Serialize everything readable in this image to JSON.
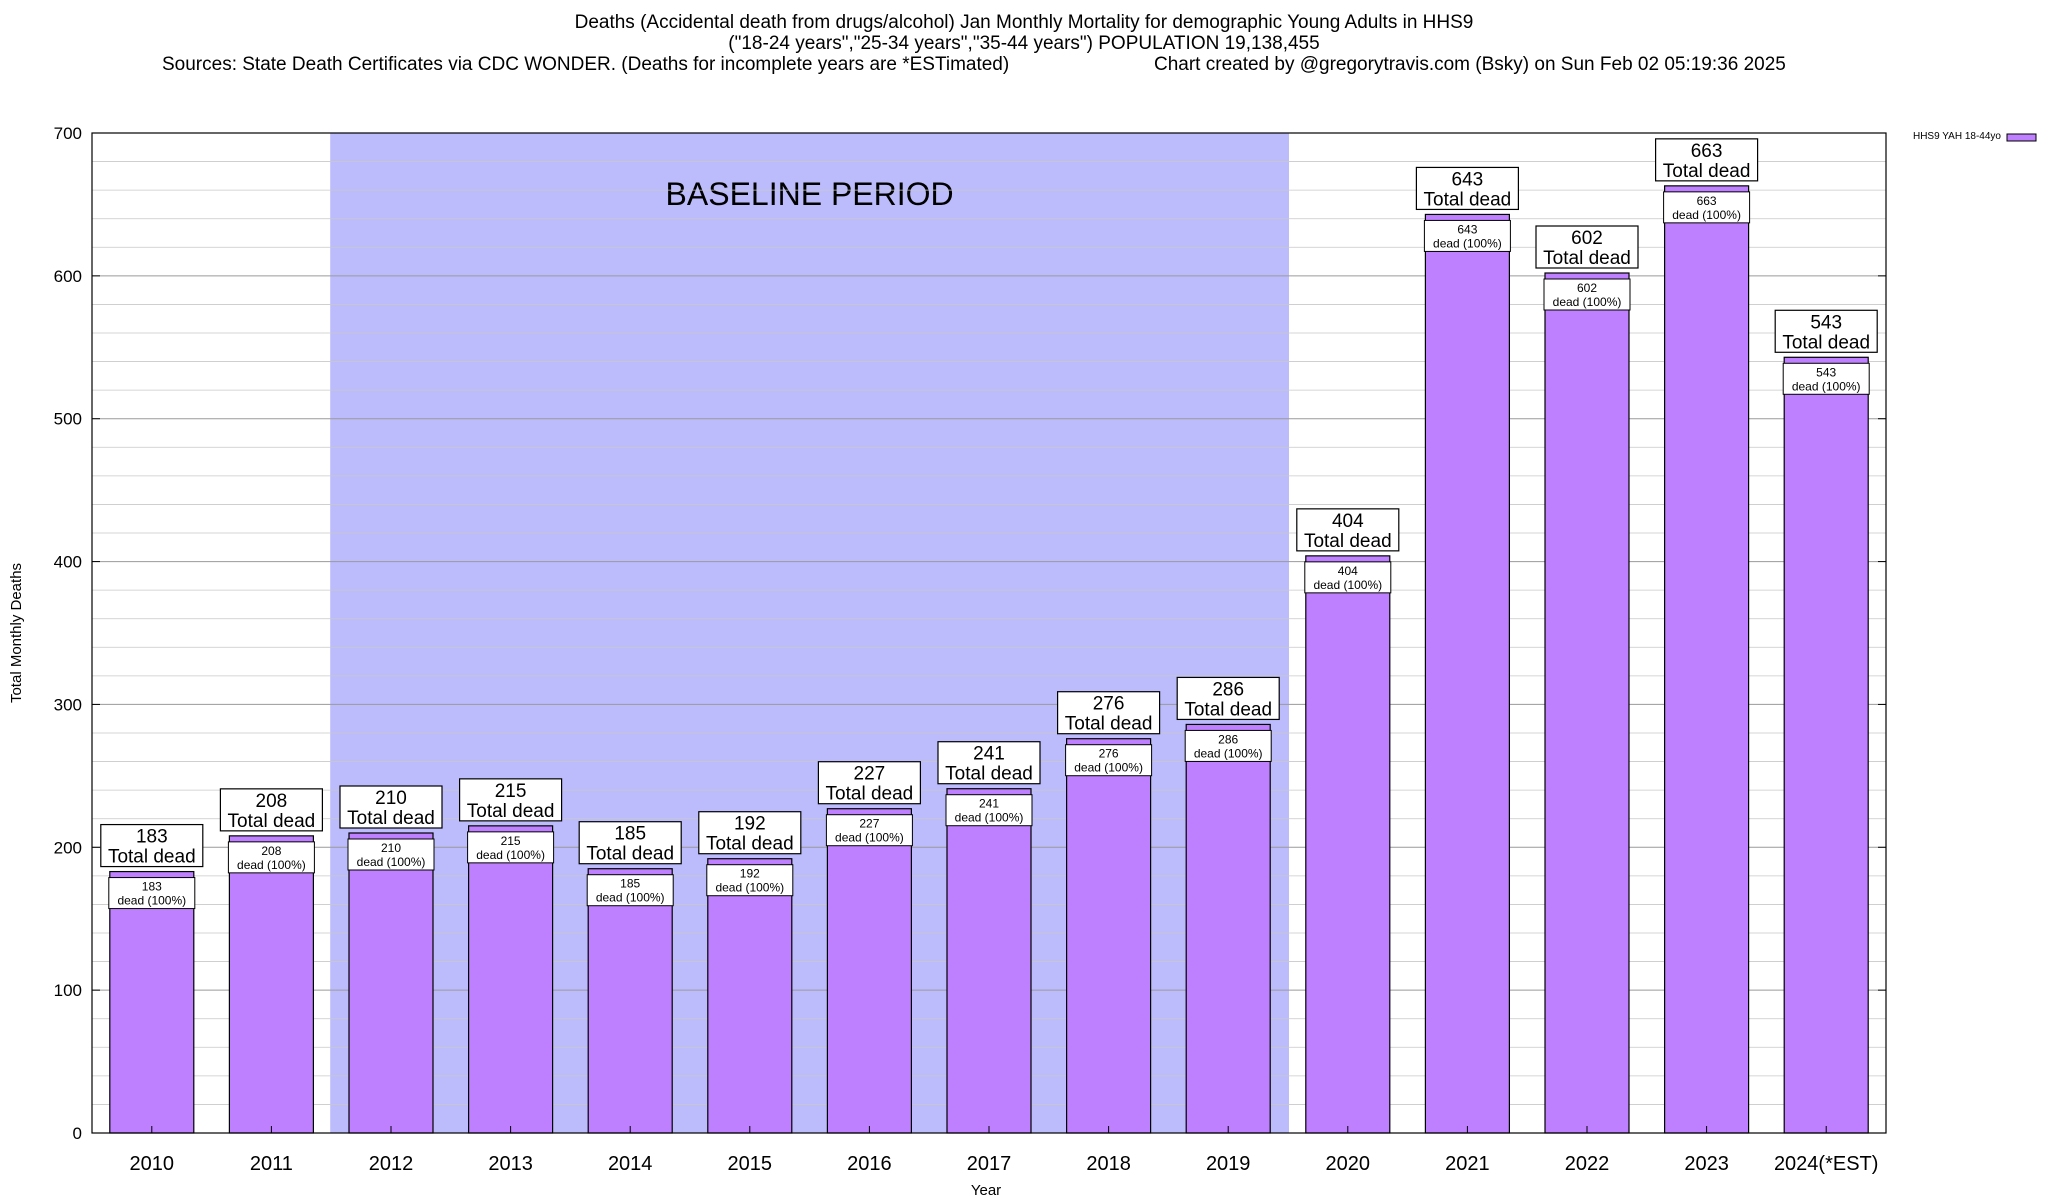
{
  "header": {
    "title_line1": "Deaths (Accidental death from drugs/alcohol) Jan Monthly Mortality for demographic Young Adults in HHS9",
    "title_line2": "(\"18-24 years\",\"25-34 years\",\"35-44 years\") POPULATION 19,138,455",
    "sources": "Sources: State Death Certificates via CDC WONDER. (Deaths for incomplete years are *ESTimated)",
    "credit": "Chart created by @gregorytravis.com (Bsky) on Sun Feb 02 05:19:36 2025"
  },
  "chart_data": {
    "type": "bar",
    "xlabel": "Year",
    "ylabel": "Total Monthly Deaths",
    "ylim": [
      0,
      700
    ],
    "yticks": [
      0,
      100,
      200,
      300,
      400,
      500,
      600,
      700
    ],
    "grid": true,
    "legend_position": "top-right",
    "categories": [
      "2010",
      "2011",
      "2012",
      "2013",
      "2014",
      "2015",
      "2016",
      "2017",
      "2018",
      "2019",
      "2020",
      "2021",
      "2022",
      "2023",
      "2024(*EST)"
    ],
    "series": [
      {
        "name": "HHS9 YAH 18-44yo",
        "color": "#bf80ff",
        "values": [
          183,
          208,
          210,
          215,
          185,
          192,
          227,
          241,
          276,
          286,
          404,
          643,
          602,
          663,
          543
        ]
      }
    ],
    "top_label_suffix": "Total dead",
    "inner_label_suffix": "dead (100%)",
    "baseline_period": {
      "label": "BASELINE PERIOD",
      "from": "2012",
      "to": "2019",
      "color": "#bcbcfc"
    }
  }
}
